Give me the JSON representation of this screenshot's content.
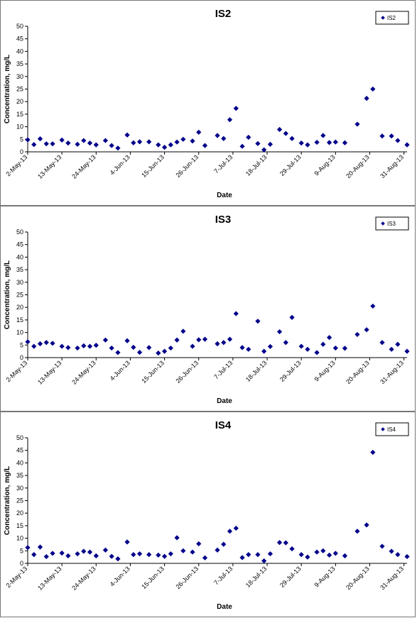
{
  "chart_data": [
    {
      "type": "scatter",
      "title": "IS2",
      "xlabel": "Date",
      "ylabel": "Concentration, mg/L",
      "ylim": [
        0,
        50
      ],
      "yticks": [
        0,
        5,
        10,
        15,
        20,
        25,
        30,
        35,
        40,
        45,
        50
      ],
      "xlim": [
        "2013-05-02",
        "2013-09-01"
      ],
      "xticks": [
        "2-May-13",
        "13-May-13",
        "24-May-13",
        "4-Jun-13",
        "15-Jun-13",
        "26-Jun-13",
        "7-Jul-13",
        "18-Jul-13",
        "29-Jul-13",
        "9-Aug-13",
        "20-Aug-13",
        "31-Aug-13"
      ],
      "legend": "top-right",
      "color": "#00008B",
      "series": [
        {
          "name": "IS2",
          "x": [
            "2013-05-02",
            "2013-05-04",
            "2013-05-06",
            "2013-05-08",
            "2013-05-10",
            "2013-05-13",
            "2013-05-15",
            "2013-05-18",
            "2013-05-20",
            "2013-05-22",
            "2013-05-24",
            "2013-05-27",
            "2013-05-29",
            "2013-05-31",
            "2013-06-03",
            "2013-06-05",
            "2013-06-07",
            "2013-06-10",
            "2013-06-13",
            "2013-06-15",
            "2013-06-17",
            "2013-06-19",
            "2013-06-21",
            "2013-06-24",
            "2013-06-26",
            "2013-06-28",
            "2013-07-02",
            "2013-07-04",
            "2013-07-06",
            "2013-07-08",
            "2013-07-10",
            "2013-07-12",
            "2013-07-15",
            "2013-07-17",
            "2013-07-19",
            "2013-07-22",
            "2013-07-24",
            "2013-07-26",
            "2013-07-29",
            "2013-07-31",
            "2013-08-03",
            "2013-08-05",
            "2013-08-07",
            "2013-08-09",
            "2013-08-12",
            "2013-08-16",
            "2013-08-19",
            "2013-08-21",
            "2013-08-24",
            "2013-08-27",
            "2013-08-29",
            "2013-09-01"
          ],
          "y": [
            4.8,
            2.9,
            5.2,
            3.2,
            3.2,
            4.7,
            3.5,
            3.0,
            4.5,
            3.5,
            2.8,
            4.5,
            2.5,
            1.5,
            6.7,
            3.6,
            4.0,
            4.0,
            2.8,
            1.8,
            2.8,
            3.9,
            5.0,
            4.3,
            7.8,
            2.5,
            6.5,
            5.3,
            12.8,
            17.3,
            2.2,
            5.8,
            3.3,
            0.8,
            3.0,
            8.9,
            7.3,
            5.3,
            3.5,
            2.8,
            3.8,
            6.5,
            3.7,
            3.9,
            3.6,
            11.0,
            21.3,
            25.0,
            6.3,
            6.3,
            4.5,
            2.8
          ]
        }
      ]
    },
    {
      "type": "scatter",
      "title": "IS3",
      "xlabel": "Date",
      "ylabel": "Concentration, mg/L",
      "ylim": [
        0,
        50
      ],
      "yticks": [
        0,
        5,
        10,
        15,
        20,
        25,
        30,
        35,
        40,
        45,
        50
      ],
      "xlim": [
        "2013-05-02",
        "2013-09-01"
      ],
      "xticks": [
        "2-May-13",
        "13-May-13",
        "24-May-13",
        "4-Jun-13",
        "15-Jun-13",
        "26-Jun-13",
        "7-Jul-13",
        "18-Jul-13",
        "29-Jul-13",
        "9-Aug-13",
        "20-Aug-13",
        "31-Aug-13"
      ],
      "legend": "top-right",
      "color": "#00008B",
      "series": [
        {
          "name": "IS3",
          "x": [
            "2013-05-02",
            "2013-05-04",
            "2013-05-06",
            "2013-05-08",
            "2013-05-10",
            "2013-05-13",
            "2013-05-15",
            "2013-05-18",
            "2013-05-20",
            "2013-05-22",
            "2013-05-24",
            "2013-05-27",
            "2013-05-29",
            "2013-05-31",
            "2013-06-03",
            "2013-06-05",
            "2013-06-07",
            "2013-06-10",
            "2013-06-13",
            "2013-06-15",
            "2013-06-17",
            "2013-06-19",
            "2013-06-21",
            "2013-06-24",
            "2013-06-26",
            "2013-06-28",
            "2013-07-02",
            "2013-07-04",
            "2013-07-06",
            "2013-07-08",
            "2013-07-10",
            "2013-07-12",
            "2013-07-15",
            "2013-07-17",
            "2013-07-19",
            "2013-07-22",
            "2013-07-24",
            "2013-07-26",
            "2013-07-29",
            "2013-07-31",
            "2013-08-03",
            "2013-08-05",
            "2013-08-07",
            "2013-08-09",
            "2013-08-12",
            "2013-08-16",
            "2013-08-19",
            "2013-08-21",
            "2013-08-24",
            "2013-08-27",
            "2013-08-29",
            "2013-09-01"
          ],
          "y": [
            6.3,
            4.5,
            5.5,
            6.0,
            5.7,
            4.5,
            4.0,
            3.8,
            4.7,
            4.5,
            4.9,
            7.0,
            3.8,
            2.0,
            6.7,
            4.1,
            2.1,
            4.0,
            1.8,
            2.5,
            3.8,
            7.0,
            10.5,
            4.5,
            7.1,
            7.3,
            5.5,
            6.0,
            7.3,
            17.5,
            4.0,
            3.3,
            14.5,
            2.5,
            4.4,
            10.3,
            6.0,
            16.0,
            4.5,
            3.3,
            2.0,
            5.3,
            8.0,
            3.8,
            3.7,
            9.2,
            11.1,
            20.5,
            6.0,
            3.3,
            5.3,
            2.5
          ]
        }
      ]
    },
    {
      "type": "scatter",
      "title": "IS4",
      "xlabel": "Date",
      "ylabel": "Concentration, mg/L",
      "ylim": [
        0,
        50
      ],
      "yticks": [
        0,
        5,
        10,
        15,
        20,
        25,
        30,
        35,
        40,
        45,
        50
      ],
      "xlim": [
        "2013-05-02",
        "2013-09-01"
      ],
      "xticks": [
        "2-May-13",
        "13-May-13",
        "24-May-13",
        "4-Jun-13",
        "15-Jun-13",
        "26-Jun-13",
        "7-Jul-13",
        "18-Jul-13",
        "29-Jul-13",
        "9-Aug-13",
        "20-Aug-13",
        "31-Aug-13"
      ],
      "legend": "top-right",
      "color": "#00008B",
      "series": [
        {
          "name": "IS4",
          "x": [
            "2013-05-02",
            "2013-05-04",
            "2013-05-06",
            "2013-05-08",
            "2013-05-10",
            "2013-05-13",
            "2013-05-15",
            "2013-05-18",
            "2013-05-20",
            "2013-05-22",
            "2013-05-24",
            "2013-05-27",
            "2013-05-29",
            "2013-05-31",
            "2013-06-03",
            "2013-06-05",
            "2013-06-07",
            "2013-06-10",
            "2013-06-13",
            "2013-06-15",
            "2013-06-17",
            "2013-06-19",
            "2013-06-21",
            "2013-06-24",
            "2013-06-26",
            "2013-06-28",
            "2013-07-02",
            "2013-07-04",
            "2013-07-06",
            "2013-07-08",
            "2013-07-10",
            "2013-07-12",
            "2013-07-15",
            "2013-07-17",
            "2013-07-19",
            "2013-07-22",
            "2013-07-24",
            "2013-07-26",
            "2013-07-29",
            "2013-07-31",
            "2013-08-03",
            "2013-08-05",
            "2013-08-07",
            "2013-08-09",
            "2013-08-12",
            "2013-08-16",
            "2013-08-19",
            "2013-08-21",
            "2013-08-24",
            "2013-08-27",
            "2013-08-29",
            "2013-09-01"
          ],
          "y": [
            6.3,
            3.5,
            6.5,
            2.7,
            4.0,
            4.1,
            3.0,
            3.8,
            4.8,
            4.5,
            3.0,
            5.3,
            2.8,
            1.8,
            8.5,
            3.5,
            3.8,
            3.5,
            3.3,
            2.8,
            3.8,
            10.2,
            5.0,
            4.5,
            7.8,
            2.2,
            5.3,
            7.6,
            12.8,
            14.0,
            2.3,
            3.5,
            3.5,
            1.0,
            3.8,
            8.3,
            8.2,
            5.8,
            3.5,
            2.5,
            4.5,
            5.0,
            3.3,
            4.0,
            3.0,
            12.8,
            15.3,
            44.2,
            6.8,
            4.8,
            3.5,
            2.7
          ]
        }
      ]
    }
  ]
}
